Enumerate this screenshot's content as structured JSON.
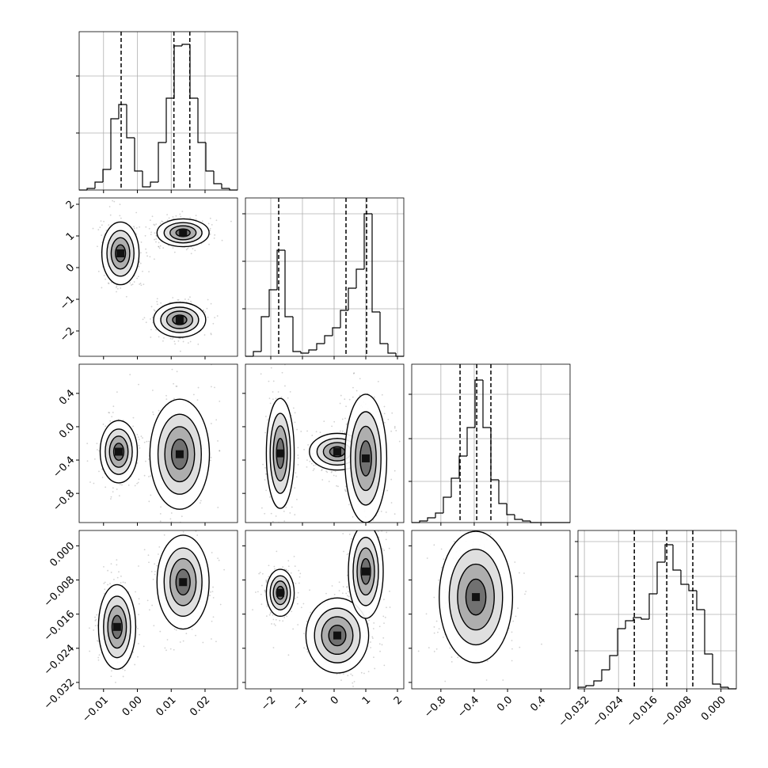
{
  "chart_data": {
    "type": "corner",
    "params": [
      {
        "lim": [
          -0.0172,
          0.0296
        ],
        "ticks": [
          {
            "value": -0.01,
            "label": "−0.01"
          },
          {
            "value": 0,
            "label": "0.00"
          },
          {
            "value": 0.01,
            "label": "0.01"
          },
          {
            "value": 0.02,
            "label": "0.02"
          }
        ],
        "bins": [
          -0.0172,
          -0.01486,
          -0.01252,
          -0.01018,
          -0.00784,
          -0.0055,
          -0.00316,
          -0.00082,
          0.00152,
          0.00386,
          0.0062,
          0.00854,
          0.01088,
          0.01322,
          0.01556,
          0.0179,
          0.02024,
          0.02258,
          0.02492,
          0.02726,
          0.0296
        ],
        "counts": [
          0,
          1,
          5,
          13,
          45,
          54,
          33,
          12,
          2,
          5,
          30,
          58,
          91,
          92,
          58,
          30,
          12,
          4,
          1,
          0
        ],
        "hist_ylim": [
          0,
          100
        ],
        "hist_yticks": [
          36,
          72
        ],
        "quantiles": [
          -0.0048,
          0.0108,
          0.0155
        ]
      },
      {
        "lim": [
          -2.8,
          2.2
        ],
        "ticks": [
          {
            "value": -2,
            "label": "−2"
          },
          {
            "value": -1,
            "label": "−1"
          },
          0,
          1,
          2
        ],
        "bins": [
          -2.8,
          -2.55,
          -2.3,
          -2.05,
          -1.8,
          -1.55,
          -1.3,
          -1.05,
          -0.8,
          -0.55,
          -0.3,
          -0.05,
          0.2,
          0.45,
          0.7,
          0.95,
          1.2,
          1.45,
          1.7,
          1.95,
          2.2
        ],
        "counts": [
          0,
          3,
          25,
          42,
          67,
          25,
          3,
          2,
          4,
          8,
          13,
          18,
          29,
          43,
          55,
          90,
          28,
          8,
          2,
          0
        ],
        "hist_ylim": [
          0,
          100
        ],
        "hist_yticks": [
          30,
          60,
          90
        ],
        "quantiles": [
          -1.75,
          0.375,
          1.025
        ]
      },
      {
        "lim": [
          -1.15,
          0.75
        ],
        "ticks": [
          {
            "value": -0.8,
            "label": "−0.8"
          },
          {
            "value": -0.4,
            "label": "−0.4"
          },
          {
            "value": 0,
            "label": "0.0"
          },
          0.4
        ],
        "bins": [
          -1.15,
          -1.055,
          -0.96,
          -0.865,
          -0.77,
          -0.675,
          -0.58,
          -0.485,
          -0.39,
          -0.295,
          -0.2,
          -0.105,
          -0.01,
          0.085,
          0.18,
          0.275,
          0.37,
          0.465,
          0.56,
          0.655,
          0.75
        ],
        "counts": [
          0,
          1,
          3,
          6,
          16,
          28,
          42,
          60,
          90,
          60,
          27,
          12,
          5,
          2,
          1,
          0,
          0,
          0,
          0,
          0
        ],
        "hist_ylim": [
          0,
          100
        ],
        "hist_yticks": [
          26,
          53,
          81
        ],
        "quantiles": [
          -0.57,
          -0.37,
          -0.2
        ]
      },
      {
        "lim": [
          -0.0335,
          0.0036
        ],
        "ticks": [
          {
            "value": -0.032,
            "label": "−0.032"
          },
          {
            "value": -0.024,
            "label": "−0.024"
          },
          {
            "value": -0.016,
            "label": "−0.016"
          },
          {
            "value": -0.008,
            "label": "−0.008"
          },
          {
            "value": 0,
            "label": "0.000"
          }
        ],
        "bins": [
          -0.0335,
          -0.031645,
          -0.02979,
          -0.027935,
          -0.02608,
          -0.024225,
          -0.02237,
          -0.020515,
          -0.01866,
          -0.016805,
          -0.01495,
          -0.013095,
          -0.01124,
          -0.009385,
          -0.00753,
          -0.005675,
          -0.00382,
          -0.001965,
          -0.00011,
          0.001745,
          0.0036
        ],
        "counts": [
          1,
          2,
          5,
          12,
          21,
          38,
          43,
          45,
          44,
          60,
          80,
          91,
          75,
          66,
          62,
          50,
          22,
          3,
          1,
          0
        ],
        "hist_ylim": [
          0,
          100
        ],
        "hist_yticks": [
          24,
          47,
          71,
          93
        ],
        "quantiles": [
          -0.0203,
          -0.0127,
          -0.0066
        ]
      }
    ],
    "panels": [
      {
        "row": 1,
        "col": 0,
        "components": [
          {
            "x": -0.005,
            "y": 0.45,
            "sx": 0.0025,
            "sy": 0.45
          },
          {
            "x": 0.0135,
            "y": 1.1,
            "sx": 0.0035,
            "sy": 0.2
          },
          {
            "x": 0.0125,
            "y": -1.65,
            "sx": 0.0035,
            "sy": 0.25
          }
        ]
      },
      {
        "row": 2,
        "col": 0,
        "components": [
          {
            "x": -0.0055,
            "y": -0.3,
            "sx": 0.0025,
            "sy": 0.17
          },
          {
            "x": 0.0125,
            "y": -0.33,
            "sx": 0.004,
            "sy": 0.3
          }
        ]
      },
      {
        "row": 2,
        "col": 1,
        "components": [
          {
            "x": 0.1,
            "y": -0.3,
            "sx": 0.4,
            "sy": 0.1
          },
          {
            "x": -1.7,
            "y": -0.32,
            "sx": 0.2,
            "sy": 0.3
          },
          {
            "x": 1.0,
            "y": -0.38,
            "sx": 0.3,
            "sy": 0.35
          }
        ]
      },
      {
        "row": 3,
        "col": 0,
        "components": [
          {
            "x": -0.006,
            "y": -0.019,
            "sx": 0.0025,
            "sy": 0.0045
          },
          {
            "x": 0.0135,
            "y": -0.0085,
            "sx": 0.0035,
            "sy": 0.005
          }
        ]
      },
      {
        "row": 3,
        "col": 1,
        "components": [
          {
            "x": 0.1,
            "y": -0.021,
            "sx": 0.45,
            "sy": 0.004
          },
          {
            "x": -1.7,
            "y": -0.011,
            "sx": 0.2,
            "sy": 0.0025
          },
          {
            "x": 1.0,
            "y": -0.006,
            "sx": 0.25,
            "sy": 0.005
          }
        ]
      },
      {
        "row": 3,
        "col": 2,
        "components": [
          {
            "x": -0.38,
            "y": -0.012,
            "sx": 0.2,
            "sy": 0.007
          }
        ]
      }
    ]
  }
}
